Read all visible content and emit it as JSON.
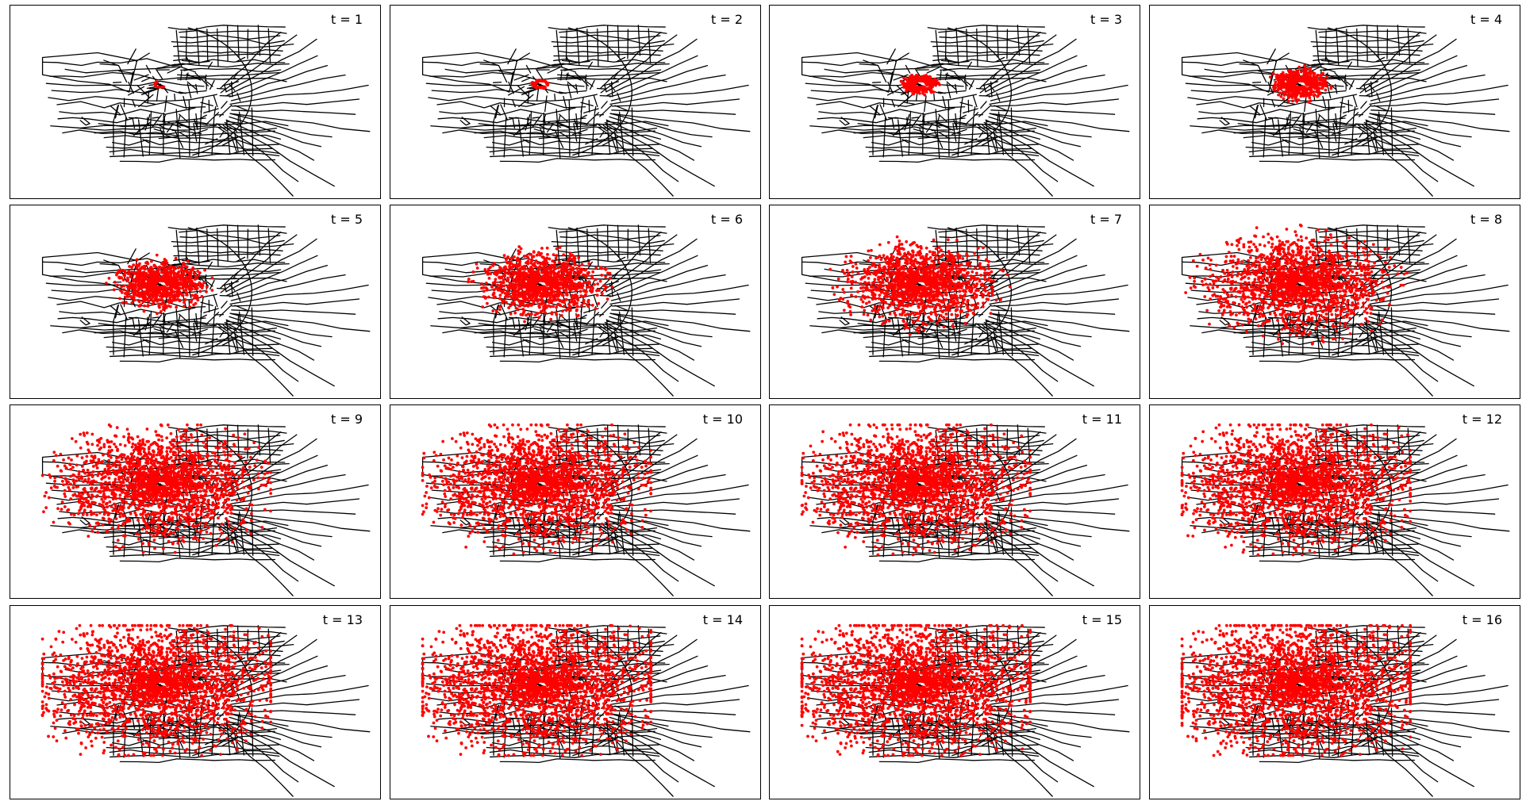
{
  "figure": {
    "rows": 4,
    "cols": 4,
    "network_color": "#000000",
    "spread_color": "#ff0000",
    "background": "#ffffff",
    "panels": [
      {
        "label": "t = 1",
        "step": 1
      },
      {
        "label": "t = 2",
        "step": 2
      },
      {
        "label": "t = 3",
        "step": 3
      },
      {
        "label": "t = 4",
        "step": 4
      },
      {
        "label": "t = 5",
        "step": 5
      },
      {
        "label": "t = 6",
        "step": 6
      },
      {
        "label": "t = 7",
        "step": 7
      },
      {
        "label": "t = 8",
        "step": 8
      },
      {
        "label": "t = 9",
        "step": 9
      },
      {
        "label": "t = 10",
        "step": 10
      },
      {
        "label": "t = 11",
        "step": 11
      },
      {
        "label": "t = 12",
        "step": 12
      },
      {
        "label": "t = 13",
        "step": 13
      },
      {
        "label": "t = 14",
        "step": 14
      },
      {
        "label": "t = 15",
        "step": 15
      },
      {
        "label": "t = 16",
        "step": 16
      }
    ]
  }
}
